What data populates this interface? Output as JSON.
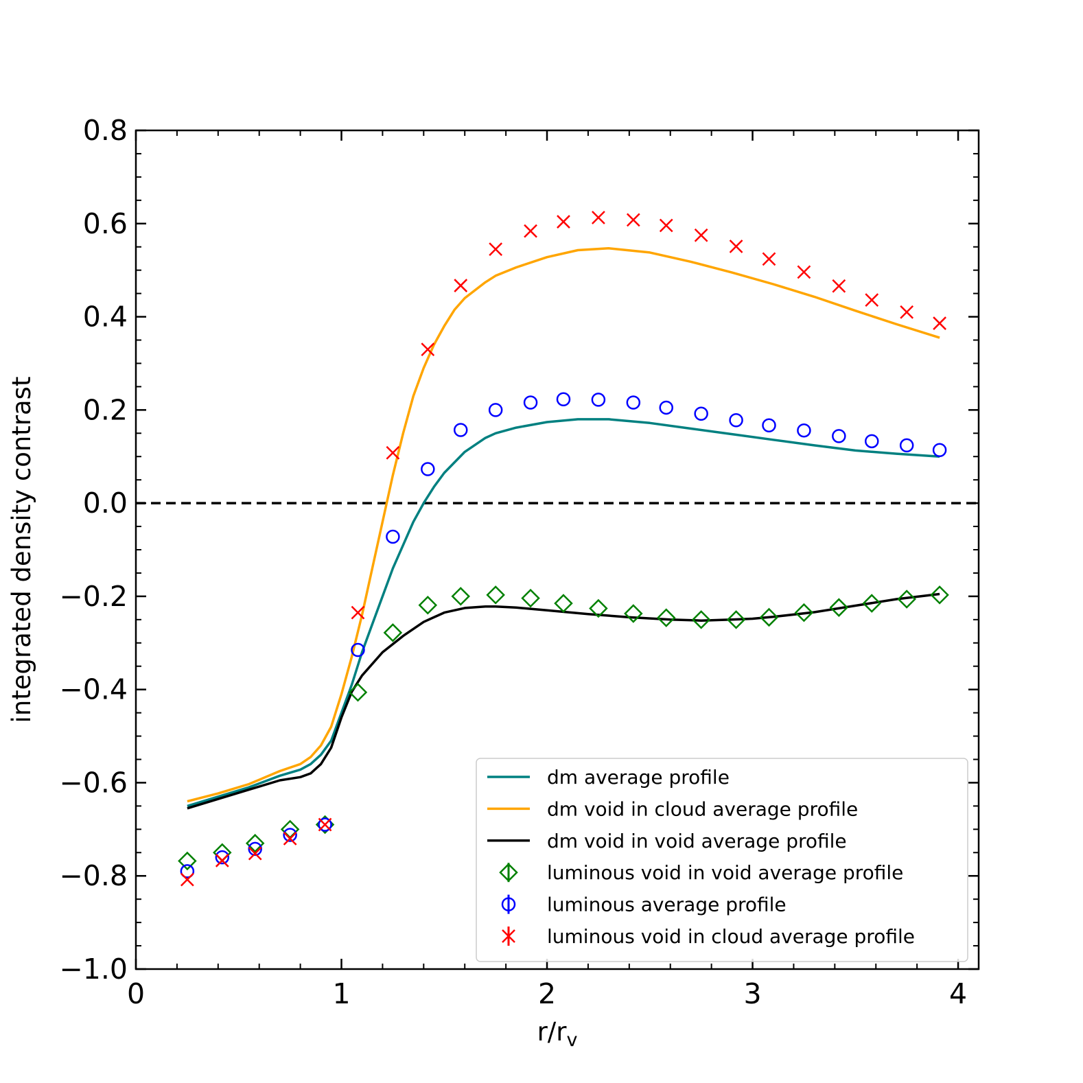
{
  "chart_data": {
    "type": "line",
    "title": "",
    "xlabel": "r/r",
    "xlabel_sub": "v",
    "ylabel": "integrated density contrast",
    "xlim": [
      0,
      4.1
    ],
    "ylim": [
      -1.0,
      0.8
    ],
    "x_ticks": [
      0,
      1,
      2,
      3,
      4
    ],
    "x_tick_labels": [
      "0",
      "1",
      "2",
      "3",
      "4"
    ],
    "y_ticks": [
      -1.0,
      -0.8,
      -0.6,
      -0.4,
      -0.2,
      0.0,
      0.2,
      0.4,
      0.6,
      0.8
    ],
    "y_tick_labels": [
      "−1.0",
      "−0.8",
      "−0.6",
      "−0.4",
      "−0.2",
      "0.0",
      "0.2",
      "0.4",
      "0.6",
      "0.8"
    ],
    "reference_line": {
      "y": 0.0,
      "style": "dashed",
      "color": "#000000"
    },
    "legend_position": "lower-right",
    "lines": [
      {
        "name": "dm average profile",
        "color": "#008080",
        "x": [
          0.25,
          0.4,
          0.55,
          0.7,
          0.8,
          0.85,
          0.9,
          0.95,
          1.0,
          1.05,
          1.1,
          1.15,
          1.2,
          1.25,
          1.3,
          1.35,
          1.4,
          1.45,
          1.5,
          1.6,
          1.7,
          1.75,
          1.85,
          2.0,
          2.15,
          2.3,
          2.5,
          2.7,
          2.9,
          3.1,
          3.3,
          3.5,
          3.7,
          3.91
        ],
        "y": [
          -0.65,
          -0.63,
          -0.61,
          -0.585,
          -0.572,
          -0.56,
          -0.54,
          -0.51,
          -0.45,
          -0.39,
          -0.32,
          -0.26,
          -0.2,
          -0.14,
          -0.09,
          -0.04,
          0.0,
          0.035,
          0.065,
          0.11,
          0.14,
          0.15,
          0.162,
          0.174,
          0.18,
          0.18,
          0.172,
          0.16,
          0.148,
          0.136,
          0.124,
          0.113,
          0.106,
          0.1
        ]
      },
      {
        "name": "dm void in cloud average profile",
        "color": "#FFA500",
        "x": [
          0.25,
          0.4,
          0.55,
          0.7,
          0.8,
          0.85,
          0.9,
          0.95,
          1.0,
          1.05,
          1.1,
          1.15,
          1.2,
          1.25,
          1.3,
          1.35,
          1.4,
          1.45,
          1.5,
          1.55,
          1.6,
          1.7,
          1.75,
          1.85,
          2.0,
          2.15,
          2.3,
          2.5,
          2.7,
          2.9,
          3.1,
          3.3,
          3.5,
          3.7,
          3.91
        ],
        "y": [
          -0.64,
          -0.623,
          -0.603,
          -0.575,
          -0.56,
          -0.545,
          -0.52,
          -0.48,
          -0.41,
          -0.33,
          -0.24,
          -0.14,
          -0.04,
          0.06,
          0.15,
          0.23,
          0.29,
          0.34,
          0.38,
          0.415,
          0.44,
          0.474,
          0.488,
          0.506,
          0.528,
          0.543,
          0.547,
          0.538,
          0.518,
          0.495,
          0.47,
          0.443,
          0.413,
          0.384,
          0.355
        ]
      },
      {
        "name": "dm void in void average profile",
        "color": "#000000",
        "x": [
          0.25,
          0.4,
          0.55,
          0.7,
          0.8,
          0.85,
          0.9,
          0.95,
          1.0,
          1.05,
          1.1,
          1.2,
          1.3,
          1.4,
          1.5,
          1.6,
          1.7,
          1.75,
          1.85,
          2.0,
          2.2,
          2.4,
          2.6,
          2.75,
          2.9,
          3.0,
          3.1,
          3.3,
          3.5,
          3.7,
          3.91
        ],
        "y": [
          -0.655,
          -0.635,
          -0.615,
          -0.595,
          -0.588,
          -0.58,
          -0.56,
          -0.525,
          -0.46,
          -0.405,
          -0.37,
          -0.32,
          -0.285,
          -0.255,
          -0.235,
          -0.225,
          -0.222,
          -0.222,
          -0.224,
          -0.23,
          -0.238,
          -0.245,
          -0.25,
          -0.252,
          -0.25,
          -0.248,
          -0.244,
          -0.234,
          -0.22,
          -0.206,
          -0.195
        ]
      }
    ],
    "markers": [
      {
        "name": "luminous void in void average profile",
        "color": "#008000",
        "marker": "diamond",
        "x": [
          0.25,
          0.42,
          0.58,
          0.75,
          0.92,
          1.08,
          1.25,
          1.42,
          1.58,
          1.75,
          1.92,
          2.08,
          2.25,
          2.42,
          2.58,
          2.75,
          2.92,
          3.08,
          3.25,
          3.42,
          3.58,
          3.75,
          3.91
        ],
        "y": [
          -0.768,
          -0.75,
          -0.73,
          -0.7,
          -0.69,
          -0.406,
          -0.278,
          -0.219,
          -0.2,
          -0.197,
          -0.204,
          -0.215,
          -0.226,
          -0.237,
          -0.246,
          -0.25,
          -0.25,
          -0.245,
          -0.235,
          -0.224,
          -0.215,
          -0.206,
          -0.197
        ]
      },
      {
        "name": "luminous average profile",
        "color": "#0000FF",
        "marker": "circle",
        "x": [
          0.25,
          0.42,
          0.58,
          0.75,
          0.92,
          1.08,
          1.25,
          1.42,
          1.58,
          1.75,
          1.92,
          2.08,
          2.25,
          2.42,
          2.58,
          2.75,
          2.92,
          3.08,
          3.25,
          3.42,
          3.58,
          3.75,
          3.91
        ],
        "y": [
          -0.79,
          -0.76,
          -0.742,
          -0.712,
          -0.69,
          -0.315,
          -0.072,
          0.073,
          0.157,
          0.2,
          0.216,
          0.223,
          0.222,
          0.216,
          0.205,
          0.192,
          0.178,
          0.167,
          0.156,
          0.144,
          0.133,
          0.124,
          0.114
        ]
      },
      {
        "name": "luminous void in cloud average profile",
        "color": "#FF0000",
        "marker": "x",
        "x": [
          0.25,
          0.42,
          0.58,
          0.75,
          0.92,
          1.08,
          1.25,
          1.42,
          1.58,
          1.75,
          1.92,
          2.08,
          2.25,
          2.42,
          2.58,
          2.75,
          2.92,
          3.08,
          3.25,
          3.42,
          3.58,
          3.75,
          3.91
        ],
        "y": [
          -0.808,
          -0.767,
          -0.752,
          -0.72,
          -0.69,
          -0.235,
          0.108,
          0.33,
          0.467,
          0.545,
          0.584,
          0.604,
          0.613,
          0.608,
          0.596,
          0.575,
          0.551,
          0.524,
          0.496,
          0.466,
          0.436,
          0.41,
          0.386
        ]
      }
    ]
  }
}
